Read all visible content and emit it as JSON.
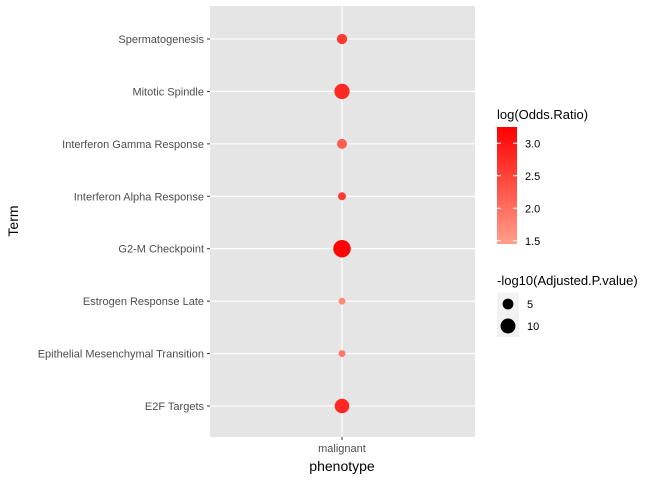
{
  "chart_data": {
    "type": "scatter",
    "xlabel": "phenotype",
    "ylabel": "Term",
    "x_categories": [
      "malignant"
    ],
    "y_categories": [
      "Spermatogenesis",
      "Mitotic Spindle",
      "Interferon Gamma Response",
      "Interferon Alpha Response",
      "G2-M Checkpoint",
      "Estrogen Response Late",
      "Epithelial Mesenchymal Transition",
      "E2F Targets"
    ],
    "points": [
      {
        "x": "malignant",
        "y": "Spermatogenesis",
        "log_odds_ratio": 2.6,
        "neg_log10_adj_p": 4.5
      },
      {
        "x": "malignant",
        "y": "Mitotic Spindle",
        "log_odds_ratio": 2.8,
        "neg_log10_adj_p": 10.5
      },
      {
        "x": "malignant",
        "y": "Interferon Gamma Response",
        "log_odds_ratio": 2.2,
        "neg_log10_adj_p": 4.2
      },
      {
        "x": "malignant",
        "y": "Interferon Alpha Response",
        "log_odds_ratio": 2.6,
        "neg_log10_adj_p": 2.5
      },
      {
        "x": "malignant",
        "y": "G2-M Checkpoint",
        "log_odds_ratio": 3.2,
        "neg_log10_adj_p": 14.0
      },
      {
        "x": "malignant",
        "y": "Estrogen Response Late",
        "log_odds_ratio": 1.7,
        "neg_log10_adj_p": 1.8
      },
      {
        "x": "malignant",
        "y": "Epithelial Mesenchymal Transition",
        "log_odds_ratio": 1.9,
        "neg_log10_adj_p": 1.8
      },
      {
        "x": "malignant",
        "y": "E2F Targets",
        "log_odds_ratio": 2.8,
        "neg_log10_adj_p": 9.5
      }
    ],
    "color_legend": {
      "title": "log(Odds.Ratio)",
      "breaks": [
        "3.0",
        "2.5",
        "2.0",
        "1.5"
      ],
      "break_values": [
        3.0,
        2.5,
        2.0,
        1.5
      ],
      "min": 1.45,
      "max": 3.25,
      "low_color": "#ffa08a",
      "high_color": "#ff0000"
    },
    "size_legend": {
      "title": "-log10(Adjusted.P.value)",
      "breaks": [
        "5",
        "10"
      ],
      "break_values": [
        5,
        10
      ],
      "key_color": "#000000"
    },
    "panel_background": "#e5e5e5",
    "grid_color": "#ffffff",
    "grid": true,
    "legend_position": "right"
  }
}
